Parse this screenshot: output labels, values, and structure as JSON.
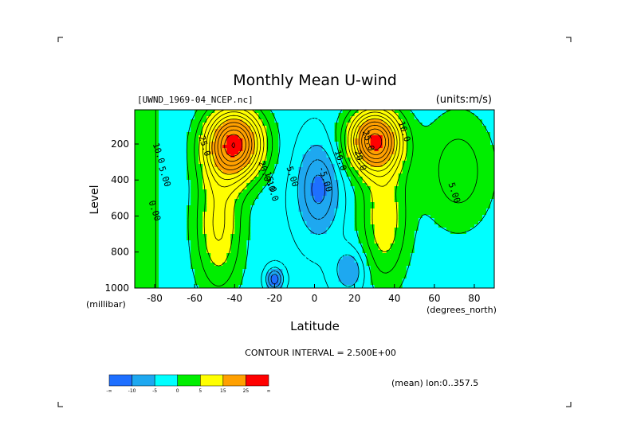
{
  "title": "Monthly Mean U-wind",
  "dataset_label": "[UWND_1969-04_NCEP.nc]",
  "units_label": "(units:m/s)",
  "contour_interval": "CONTOUR INTERVAL = 2.500E+00",
  "mean_note": "(mean) lon:0..357.5",
  "colors": {
    "lt_neg10": "#1e6fff",
    "neg10_neg5": "#1ea8f0",
    "neg5_0": "#00ffff",
    "0_5": "#00ee00",
    "5_15": "#ffff00",
    "15_25": "#ffa000",
    "gt_25": "#ff0000",
    "contour": "#000000"
  },
  "chart_data": {
    "type": "heatmap",
    "title": "Monthly Mean U-wind",
    "xlabel": "Latitude",
    "x_units": "(degrees_north)",
    "ylabel": "Level",
    "y_units": "(millibar)",
    "xlim": [
      -90,
      90
    ],
    "ylim": [
      1000,
      10
    ],
    "y_inverted": true,
    "x_ticks": [
      -80,
      -60,
      -40,
      -20,
      0,
      20,
      40,
      60,
      80
    ],
    "y_ticks": [
      200,
      400,
      600,
      800,
      1000
    ],
    "contour_interval": 2.5,
    "contour_labels": [
      {
        "lat": -81,
        "lev": 200,
        "text": "10.0"
      },
      {
        "lat": -78,
        "lev": 330,
        "text": "5.00"
      },
      {
        "lat": -83,
        "lev": 520,
        "text": "0.00"
      },
      {
        "lat": -58,
        "lev": 160,
        "text": "25.0"
      },
      {
        "lat": -28,
        "lev": 300,
        "text": "20.0"
      },
      {
        "lat": -25,
        "lev": 360,
        "text": "15.0"
      },
      {
        "lat": -24,
        "lev": 410,
        "text": "10.0"
      },
      {
        "lat": -14,
        "lev": 330,
        "text": "5.00"
      },
      {
        "lat": 2,
        "lev": 330,
        "text": "-5.00"
      },
      {
        "lat": 10,
        "lev": 240,
        "text": "10.0"
      },
      {
        "lat": 20,
        "lev": 240,
        "text": "20.0"
      },
      {
        "lat": 24,
        "lev": 130,
        "text": "25.0"
      },
      {
        "lat": 42,
        "lev": 80,
        "text": "10.0"
      },
      {
        "lat": 67,
        "lev": 420,
        "text": "5.00"
      }
    ],
    "colorbar": {
      "bin_edges": [
        "-∞",
        "-10",
        "-5",
        "0",
        "5",
        "15",
        "25",
        "∞"
      ],
      "bin_colors": [
        "#1e6fff",
        "#1ea8f0",
        "#00ffff",
        "#00ee00",
        "#ffff00",
        "#ffa000",
        "#ff0000"
      ]
    },
    "jets": [
      {
        "hemisphere": "south",
        "lat_center": -40,
        "level_center": 200,
        "max_u_approx": 27
      },
      {
        "hemisphere": "north",
        "lat_center": 30,
        "level_center": 180,
        "max_u_approx": 27
      }
    ]
  }
}
